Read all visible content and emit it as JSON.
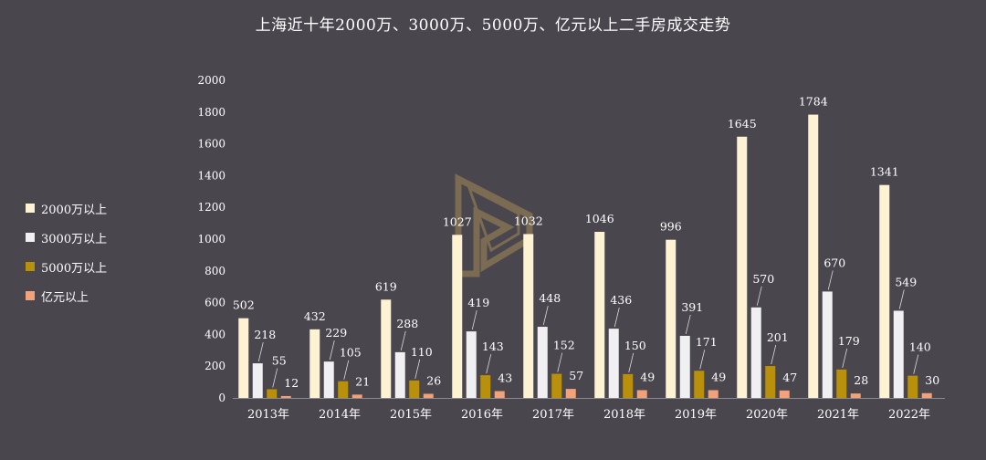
{
  "chart_data": {
    "type": "bar",
    "title": "上海近十年2000万、3000万、5000万、亿元以上二手房成交走势",
    "categories": [
      "2013年",
      "2014年",
      "2015年",
      "2016年",
      "2017年",
      "2018年",
      "2019年",
      "2020年",
      "2021年",
      "2022年"
    ],
    "series": [
      {
        "name": "2000万以上",
        "color": "#fdf3d2",
        "values": [
          502,
          432,
          619,
          1027,
          1032,
          1046,
          996,
          1645,
          1784,
          1341
        ]
      },
      {
        "name": "3000万以上",
        "color": "#f0f0f3",
        "values": [
          218,
          229,
          288,
          419,
          448,
          436,
          391,
          570,
          670,
          549
        ]
      },
      {
        "name": "5000万以上",
        "color": "#b8900c",
        "values": [
          55,
          105,
          110,
          143,
          152,
          150,
          171,
          201,
          179,
          140
        ]
      },
      {
        "name": "亿元以上",
        "color": "#f0a27a",
        "values": [
          12,
          21,
          26,
          43,
          57,
          49,
          49,
          47,
          28,
          30
        ]
      }
    ],
    "yticks": [
      "0",
      "200",
      "400",
      "600",
      "800",
      "1000",
      "1200",
      "1400",
      "1600",
      "1800",
      "2000"
    ],
    "ylim": [
      0,
      2000
    ],
    "grid": false,
    "legend_position": "left"
  }
}
